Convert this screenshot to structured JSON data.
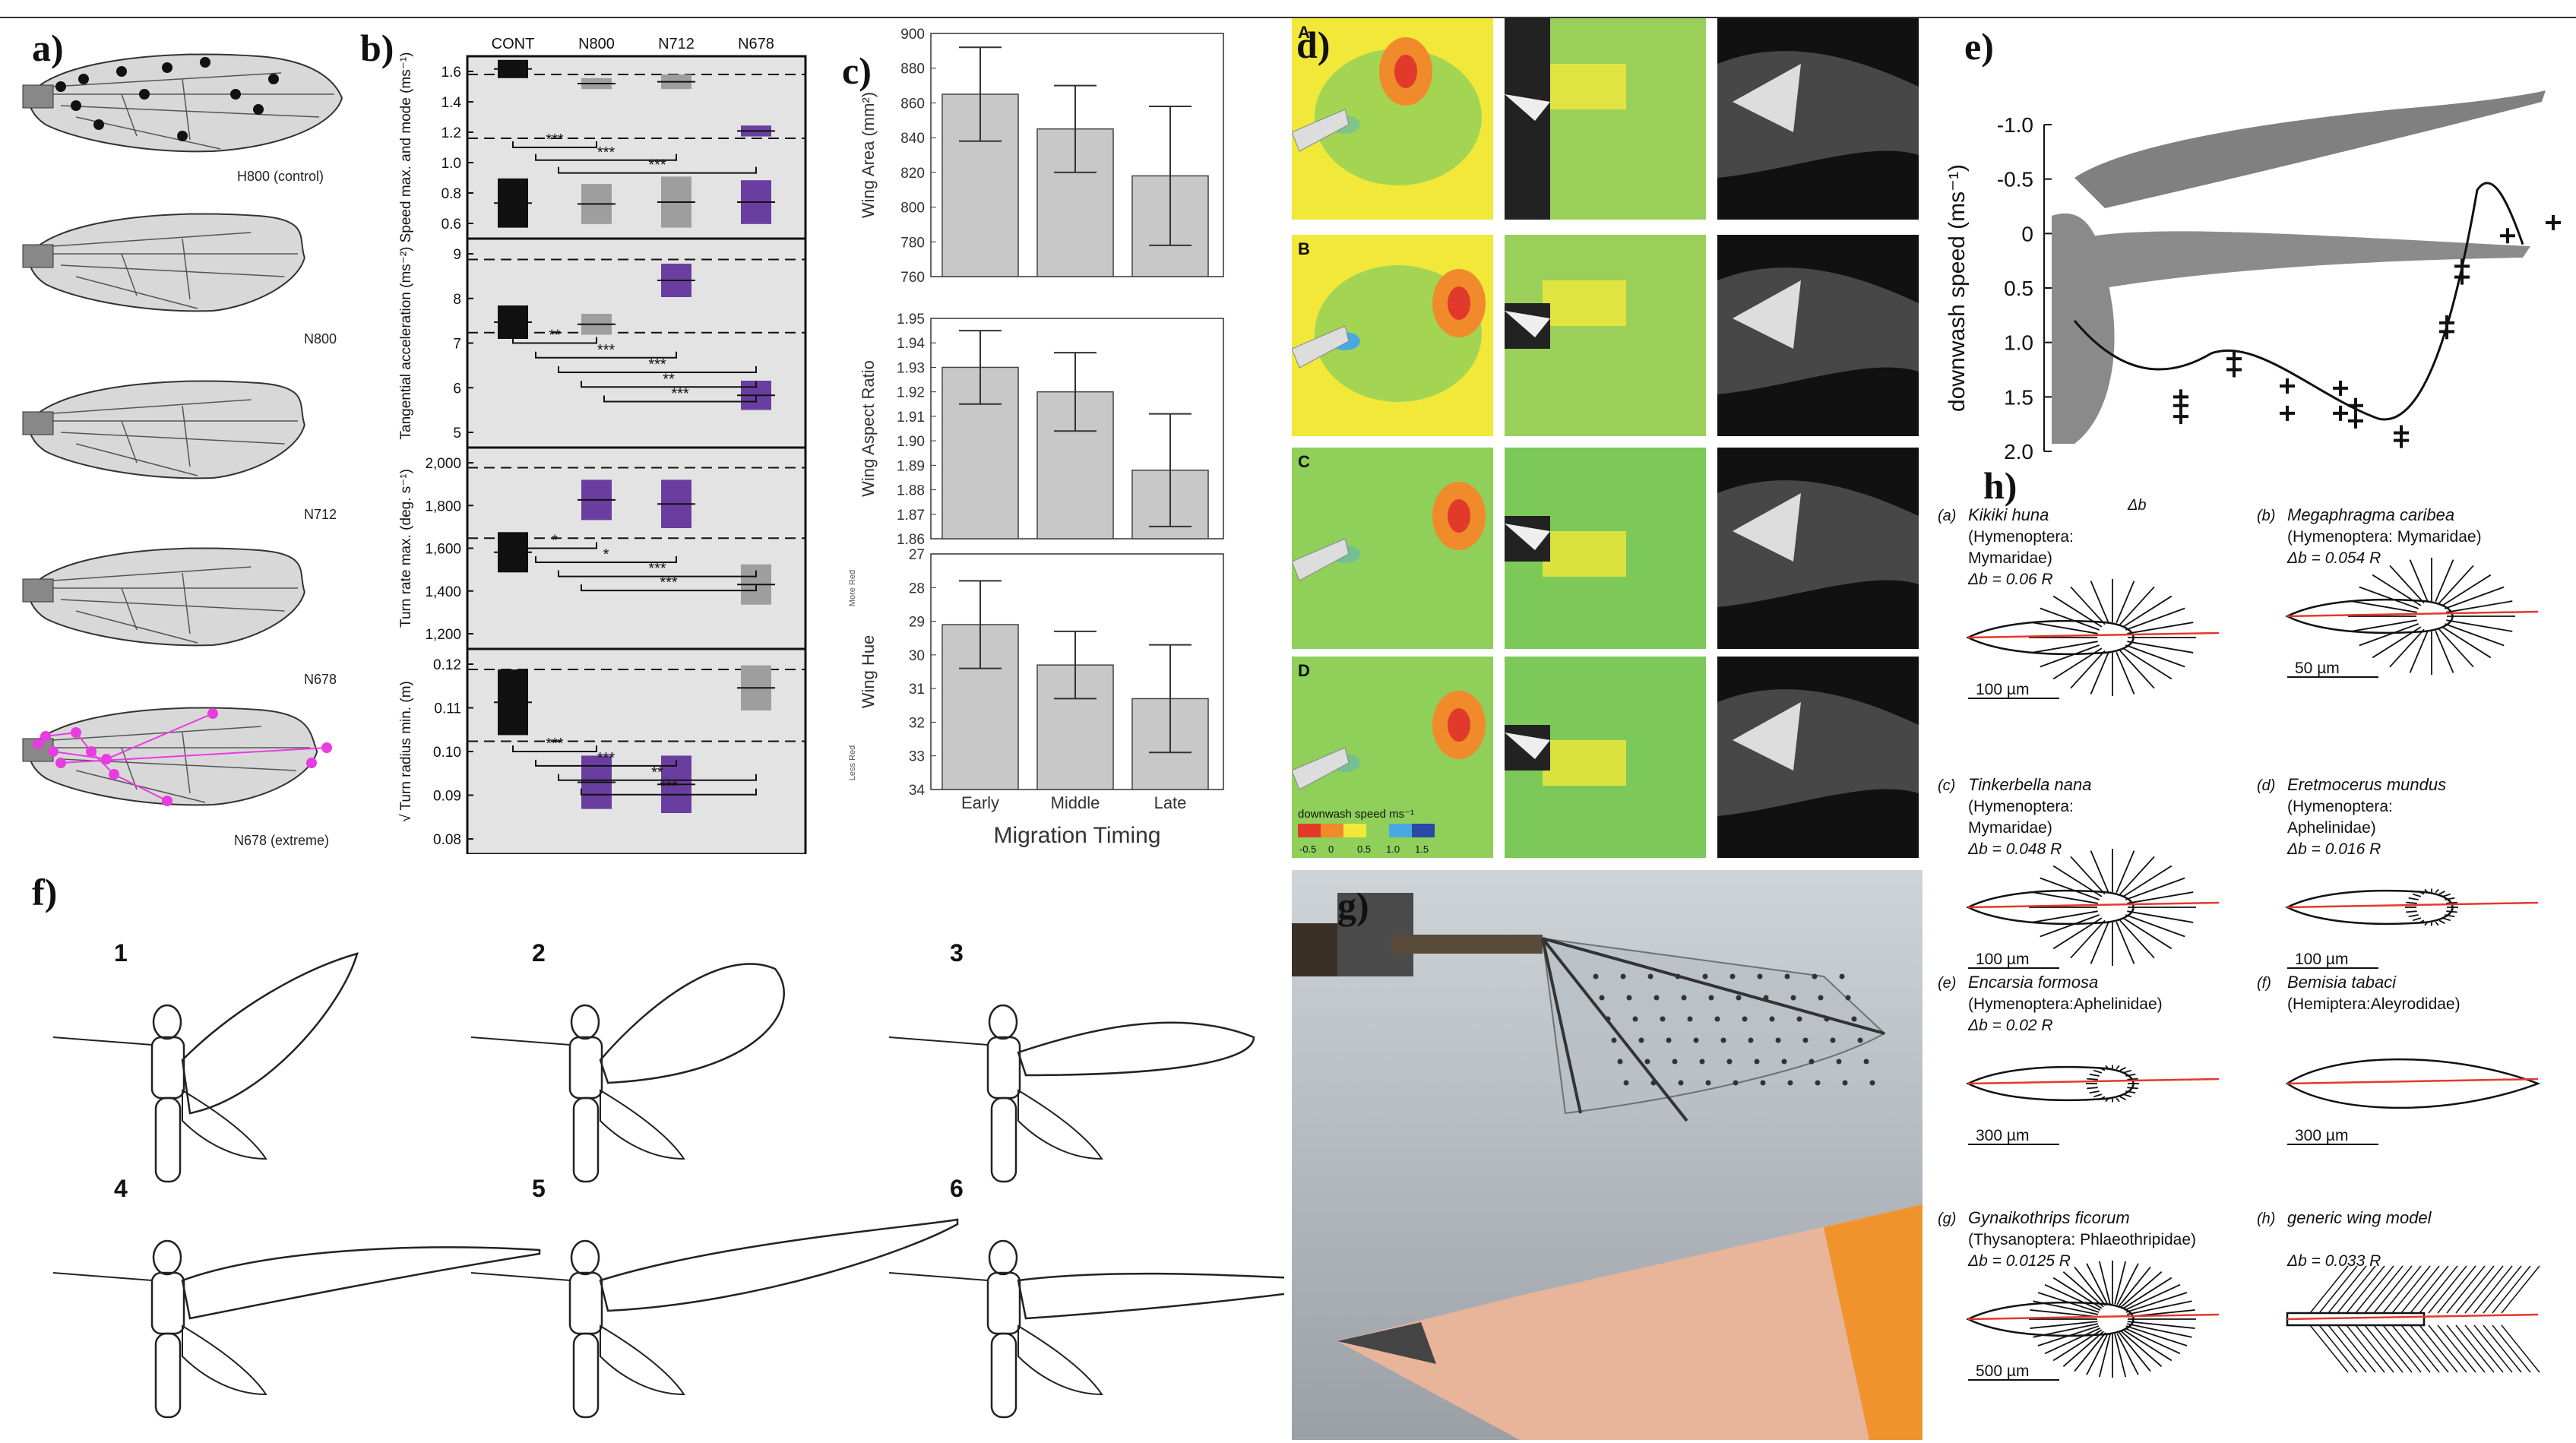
{
  "labels": {
    "a": "a)",
    "b": "b)",
    "c": "c)",
    "d": "d)",
    "e": "e)",
    "f": "f)",
    "g": "g)",
    "h": "h)"
  },
  "panel_a": {
    "wings": [
      "H800 (control)",
      "N800",
      "N712",
      "N678",
      "N678 (extreme)"
    ],
    "landmark_colors": {
      "control": "#111111",
      "extreme": "#e83ce0"
    }
  },
  "panel_b": {
    "groups": [
      "CONT",
      "N800",
      "N712",
      "N678"
    ],
    "colors": {
      "cont": "#111111",
      "mutant_same": "#9e9e9e",
      "mutant_diff": "#6a3ea1"
    },
    "rows": [
      {
        "ylabel": "Speed max. and mode (ms⁻¹)",
        "ticks": [
          "1.6",
          "1.4",
          "1.2",
          "1.0",
          "0.8",
          "0.6"
        ],
        "sig": [
          "***",
          "***",
          "***"
        ]
      },
      {
        "ylabel": "Tangential acceleration (ms⁻²)",
        "ticks": [
          "9",
          "8",
          "7",
          "6",
          "5"
        ],
        "sig": [
          "**",
          "***",
          "***",
          "**",
          "***"
        ]
      },
      {
        "ylabel": "Turn rate max. (deg. s⁻¹)",
        "ticks": [
          "2,000",
          "1,800",
          "1,600",
          "1,400",
          "1,200"
        ],
        "sig": [
          "*",
          "*",
          "***",
          "***"
        ]
      },
      {
        "ylabel": "√ Turn radius min. (m)",
        "ticks": [
          "0.12",
          "0.11",
          "0.10",
          "0.09",
          "0.08"
        ],
        "sig": [
          "***",
          "***",
          "**",
          "***"
        ]
      }
    ]
  },
  "chart_data": {
    "type": "bar",
    "xlabel": "Migration Timing",
    "categories": [
      "Early",
      "Middle",
      "Late"
    ],
    "subplots": [
      {
        "ylabel": "Wing Area (mm²)",
        "values": [
          865,
          845,
          818
        ],
        "err": [
          27,
          25,
          40
        ],
        "ylim": [
          760,
          900
        ],
        "ticks": [
          "900",
          "880",
          "860",
          "840",
          "820",
          "800",
          "780",
          "760"
        ]
      },
      {
        "ylabel": "Wing Aspect Ratio",
        "values": [
          1.93,
          1.92,
          1.888
        ],
        "err": [
          0.015,
          0.016,
          0.023
        ],
        "ylim": [
          1.86,
          1.95
        ],
        "ticks": [
          "1.95",
          "1.94",
          "1.93",
          "1.92",
          "1.91",
          "1.90",
          "1.89",
          "1.88",
          "1.87",
          "1.86"
        ]
      },
      {
        "ylabel": "Wing Hue",
        "values": [
          29.1,
          30.3,
          31.3
        ],
        "err": [
          1.3,
          1.0,
          1.6
        ],
        "ylim": [
          27,
          34
        ],
        "reversed": true,
        "ticks": [
          "27",
          "28",
          "29",
          "30",
          "31",
          "32",
          "33",
          "34"
        ],
        "top_note": "More Red",
        "bottom_note": "Less Red"
      }
    ]
  },
  "panel_d": {
    "row_letters": [
      "A",
      "B",
      "C",
      "D"
    ],
    "legend_title": "downwash speed ms⁻¹",
    "legend_ticks": [
      "-0.5",
      "0",
      "0.5",
      "1.0",
      "1.5"
    ]
  },
  "panel_e": {
    "ylabel": "downwash speed (ms⁻¹)",
    "ticks": [
      "-1.0",
      "-0.5",
      "0",
      "0.5",
      "1.0",
      "1.5",
      "2.0"
    ]
  },
  "panel_f": {
    "views": [
      "1",
      "2",
      "3",
      "4",
      "5",
      "6"
    ]
  },
  "panel_h": {
    "items": [
      {
        "tag": "(a)",
        "species": "Kikiki huna",
        "order": "(Hymenoptera:",
        "family": "Mymaridae)",
        "db": "Δb = 0.06 R",
        "scale": "100 µm",
        "note": "Δb"
      },
      {
        "tag": "(b)",
        "species": "Megaphragma caribea",
        "order": "(Hymenoptera: Mymaridae)",
        "family": "",
        "db": "Δb = 0.054 R",
        "scale": "50 µm"
      },
      {
        "tag": "(c)",
        "species": "Tinkerbella nana",
        "order": "(Hymenoptera:",
        "family": "Mymaridae)",
        "db": "Δb = 0.048 R",
        "scale": "100 µm"
      },
      {
        "tag": "(d)",
        "species": "Eretmocerus mundus",
        "order": "(Hymenoptera:",
        "family": "Aphelinidae)",
        "db": "Δb = 0.016 R",
        "scale": "100 µm"
      },
      {
        "tag": "(e)",
        "species": "Encarsia formosa",
        "order": "(Hymenoptera:Aphelinidae)",
        "family": "",
        "db": "Δb = 0.02 R",
        "scale": "300 µm"
      },
      {
        "tag": "(f)",
        "species": "Bemisia tabaci",
        "order": "(Hemiptera:Aleyrodidae)",
        "family": "",
        "db": "",
        "scale": "300 µm"
      },
      {
        "tag": "(g)",
        "species": "Gynaikothrips ficorum",
        "order": "(Thysanoptera: Phlaeothripidae)",
        "family": "",
        "db": "Δb = 0.0125 R",
        "scale": "500 µm"
      },
      {
        "tag": "(h)",
        "species": "generic wing model",
        "order": "",
        "family": "",
        "db": "Δb = 0.033 R",
        "scale": ""
      }
    ]
  }
}
